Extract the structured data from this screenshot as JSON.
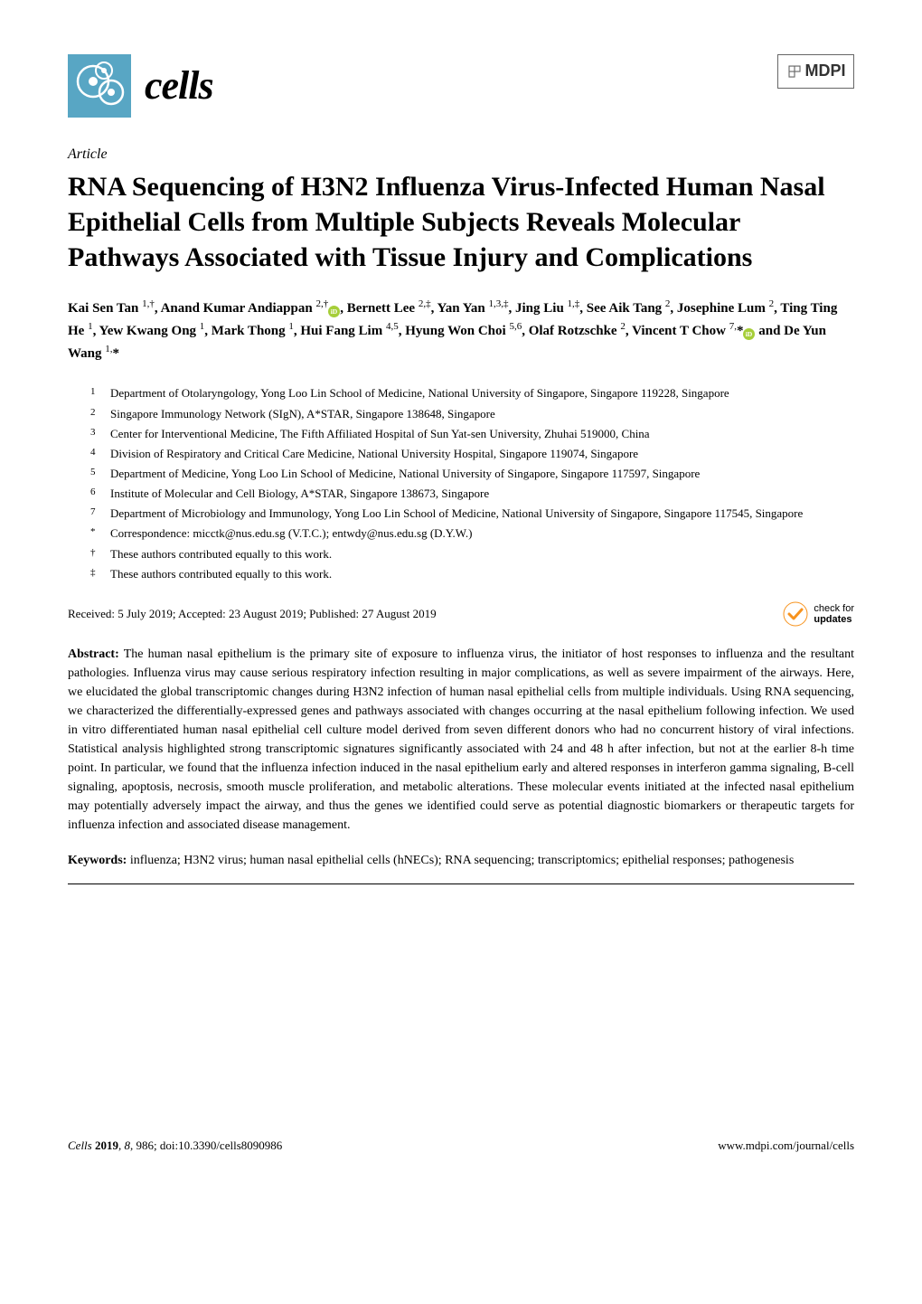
{
  "journal": {
    "name": "cells",
    "logo_color": "#58a6c4"
  },
  "publisher": "MDPI",
  "article_type": "Article",
  "title": "RNA Sequencing of H3N2 Influenza Virus-Infected Human Nasal Epithelial Cells from Multiple Subjects Reveals Molecular Pathways Associated with Tissue Injury and Complications",
  "authors_html": "Kai Sen Tan <sup>1,†</sup>, Anand Kumar Andiappan <sup>2,†</sup><span class='orcid-icon'><svg viewBox='0 0 24 24'><circle cx='12' cy='12' r='12' fill='#a6ce39'/><text x='12' y='17' text-anchor='middle' fill='#fff' font-size='14' font-weight='bold'>iD</text></svg></span>, Bernett Lee <sup>2,‡</sup>, Yan Yan <sup>1,3,‡</sup>, Jing Liu <sup>1,‡</sup>, See Aik Tang <sup>2</sup>, Josephine Lum <sup>2</sup>, Ting Ting He <sup>1</sup>, Yew Kwang Ong <sup>1</sup>, Mark Thong <sup>1</sup>, Hui Fang Lim <sup>4,5</sup>, Hyung Won Choi <sup>5,6</sup>, Olaf Rotzschke <sup>2</sup>, Vincent T Chow <sup>7,</sup>*<span class='orcid-icon'><svg viewBox='0 0 24 24'><circle cx='12' cy='12' r='12' fill='#a6ce39'/><text x='12' y='17' text-anchor='middle' fill='#fff' font-size='14' font-weight='bold'>iD</text></svg></span> and De Yun Wang <sup>1,</sup>*",
  "affiliations": [
    {
      "num": "1",
      "text": "Department of Otolaryngology, Yong Loo Lin School of Medicine, National University of Singapore, Singapore 119228, Singapore"
    },
    {
      "num": "2",
      "text": "Singapore Immunology Network (SIgN), A*STAR, Singapore 138648, Singapore"
    },
    {
      "num": "3",
      "text": "Center for Interventional Medicine, The Fifth Affiliated Hospital of Sun Yat-sen University, Zhuhai 519000, China"
    },
    {
      "num": "4",
      "text": "Division of Respiratory and Critical Care Medicine, National University Hospital, Singapore 119074, Singapore"
    },
    {
      "num": "5",
      "text": "Department of Medicine, Yong Loo Lin School of Medicine, National University of Singapore, Singapore 117597, Singapore"
    },
    {
      "num": "6",
      "text": "Institute of Molecular and Cell Biology, A*STAR, Singapore 138673, Singapore"
    },
    {
      "num": "7",
      "text": "Department of Microbiology and Immunology, Yong Loo Lin School of Medicine, National University of Singapore, Singapore 117545, Singapore"
    },
    {
      "num": "*",
      "text": "Correspondence: micctk@nus.edu.sg (V.T.C.); entwdy@nus.edu.sg (D.Y.W.)"
    },
    {
      "num": "†",
      "text": "These authors contributed equally to this work."
    },
    {
      "num": "‡",
      "text": "These authors contributed equally to this work."
    }
  ],
  "received": "Received: 5 July 2019; Accepted: 23 August 2019; Published: 27 August 2019",
  "check_updates": {
    "line1": "check for",
    "line2": "updates"
  },
  "abstract_label": "Abstract:",
  "abstract": "The human nasal epithelium is the primary site of exposure to influenza virus, the initiator of host responses to influenza and the resultant pathologies. Influenza virus may cause serious respiratory infection resulting in major complications, as well as severe impairment of the airways. Here, we elucidated the global transcriptomic changes during H3N2 infection of human nasal epithelial cells from multiple individuals. Using RNA sequencing, we characterized the differentially-expressed genes and pathways associated with changes occurring at the nasal epithelium following infection. We used in vitro differentiated human nasal epithelial cell culture model derived from seven different donors who had no concurrent history of viral infections. Statistical analysis highlighted strong transcriptomic signatures significantly associated with 24 and 48 h after infection, but not at the earlier 8-h time point. In particular, we found that the influenza infection induced in the nasal epithelium early and altered responses in interferon gamma signaling, B-cell signaling, apoptosis, necrosis, smooth muscle proliferation, and metabolic alterations. These molecular events initiated at the infected nasal epithelium may potentially adversely impact the airway, and thus the genes we identified could serve as potential diagnostic biomarkers or therapeutic targets for influenza infection and associated disease management.",
  "keywords_label": "Keywords:",
  "keywords": "influenza; H3N2 virus; human nasal epithelial cells (hNECs); RNA sequencing; transcriptomics; epithelial responses; pathogenesis",
  "footer": {
    "left": "Cells 2019, 8, 986; doi:10.3390/cells8090986",
    "right": "www.mdpi.com/journal/cells"
  },
  "colors": {
    "logo_bg": "#58a6c4",
    "orcid": "#a6ce39",
    "checkmark": "#f7931e"
  }
}
